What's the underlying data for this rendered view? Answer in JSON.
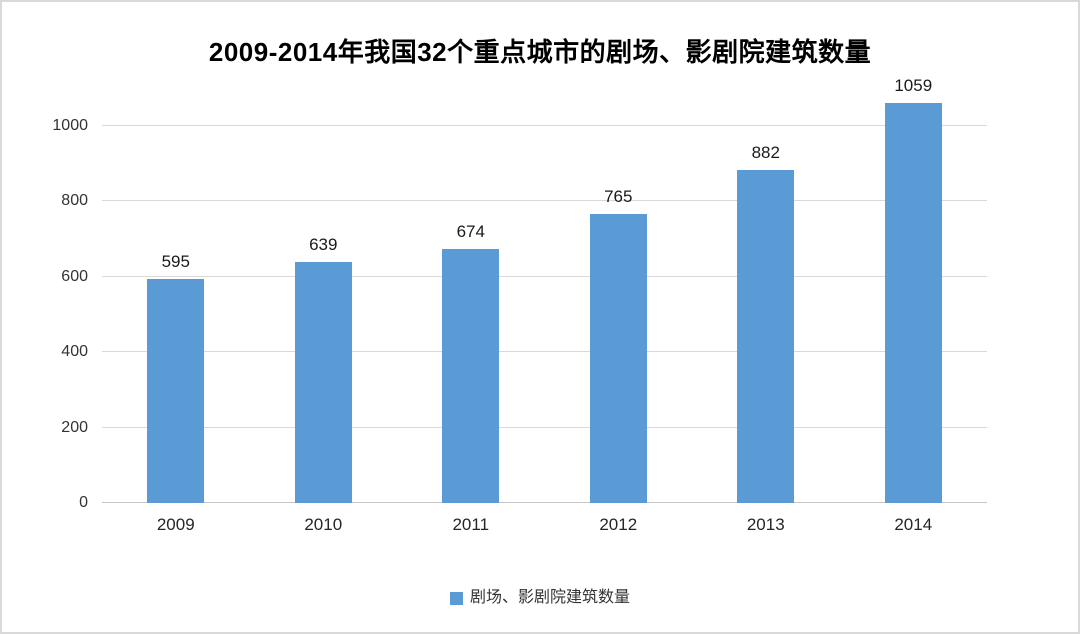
{
  "frame": {
    "background_color": "#ffffff",
    "border_color": "#d9d9d9"
  },
  "chart_data": {
    "type": "bar",
    "title": "2009-2014年我国32个重点城市的剧场、影剧院建筑数量",
    "categories": [
      "2009",
      "2010",
      "2011",
      "2012",
      "2013",
      "2014"
    ],
    "series": [
      {
        "name": "剧场、影剧院建筑数量",
        "values": [
          595,
          639,
          674,
          765,
          882,
          1059
        ]
      }
    ],
    "y_ticks": [
      0,
      200,
      400,
      600,
      800,
      1000
    ],
    "ylim": [
      0,
      1100
    ],
    "xlabel": "",
    "ylabel": "",
    "grid": true,
    "data_labels_shown": true,
    "legend_position": "bottom",
    "bar_color": "#5B9BD5",
    "gridline_color": "#d9d9d9",
    "axis_line_color": "#c6c6c6",
    "text_color": "#262626"
  }
}
